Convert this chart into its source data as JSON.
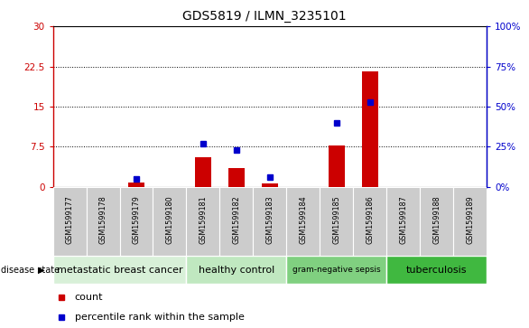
{
  "title": "GDS5819 / ILMN_3235101",
  "samples": [
    "GSM1599177",
    "GSM1599178",
    "GSM1599179",
    "GSM1599180",
    "GSM1599181",
    "GSM1599182",
    "GSM1599183",
    "GSM1599184",
    "GSM1599185",
    "GSM1599186",
    "GSM1599187",
    "GSM1599188",
    "GSM1599189"
  ],
  "count": [
    0,
    0,
    0.8,
    0,
    5.5,
    3.5,
    0.6,
    0,
    7.8,
    21.5,
    0,
    0,
    0
  ],
  "percentile": [
    0,
    0,
    5,
    0,
    27,
    23,
    6,
    0,
    40,
    53,
    0,
    0,
    0
  ],
  "disease_groups": [
    {
      "label": "metastatic breast cancer",
      "start": 0,
      "end": 4,
      "color": "#d8f0d8"
    },
    {
      "label": "healthy control",
      "start": 4,
      "end": 7,
      "color": "#c0e8c0"
    },
    {
      "label": "gram-negative sepsis",
      "start": 7,
      "end": 10,
      "color": "#80d080"
    },
    {
      "label": "tuberculosis",
      "start": 10,
      "end": 13,
      "color": "#40b840"
    }
  ],
  "ylim_left": [
    0,
    30
  ],
  "ylim_right": [
    0,
    100
  ],
  "yticks_left": [
    0,
    7.5,
    15,
    22.5,
    30
  ],
  "yticks_right": [
    0,
    25,
    50,
    75,
    100
  ],
  "bar_color": "#cc0000",
  "dot_color": "#0000cc",
  "grid_color": "#000000",
  "bg_color": "#ffffff",
  "sample_bg_color": "#cccccc",
  "legend_count_label": "count",
  "legend_pct_label": "percentile rank within the sample"
}
